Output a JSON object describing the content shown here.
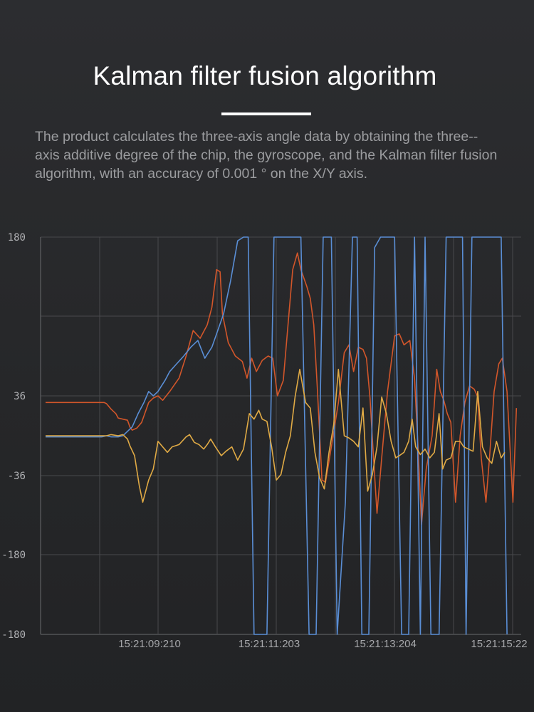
{
  "title": "Kalman filter fusion algorithm",
  "description": "The product calculates the three-axis angle data by obtaining the three--axis additive degree of the chip, the gyroscope, and the Kalman filter fusion algorithm, with an accuracy of 0.001 ° on the X/Y axis.",
  "chart_data": {
    "type": "line",
    "y_tick_labels": [
      "180",
      "36",
      "-36",
      "-180",
      "-180"
    ],
    "x_tick_labels": [
      "15:21:09:210",
      "15:21:11:203",
      "15:21:13:204",
      "15:21:15:22"
    ],
    "grid": true,
    "legend": "none",
    "series": [
      {
        "color": "#d2562a",
        "values": [
          [
            0,
            30
          ],
          [
            0.6,
            30
          ],
          [
            1,
            30
          ],
          [
            1.5,
            30
          ],
          [
            2,
            30
          ],
          [
            2.3,
            30
          ],
          [
            2.5,
            30
          ],
          [
            2.6,
            29
          ],
          [
            2.8,
            24
          ],
          [
            3.0,
            20
          ],
          [
            3.1,
            16
          ],
          [
            3.3,
            15
          ],
          [
            3.5,
            14
          ],
          [
            3.6,
            8
          ],
          [
            3.7,
            5
          ],
          [
            3.9,
            7
          ],
          [
            4.1,
            12
          ],
          [
            4.2,
            18
          ],
          [
            4.4,
            30
          ],
          [
            4.6,
            34
          ],
          [
            4.8,
            36
          ],
          [
            5.0,
            32
          ],
          [
            5.3,
            40
          ],
          [
            5.7,
            52
          ],
          [
            6.0,
            72
          ],
          [
            6.3,
            95
          ],
          [
            6.6,
            88
          ],
          [
            6.9,
            100
          ],
          [
            7.1,
            116
          ],
          [
            7.3,
            150
          ],
          [
            7.45,
            148
          ],
          [
            7.55,
            110
          ],
          [
            7.8,
            84
          ],
          [
            8.1,
            72
          ],
          [
            8.4,
            67
          ],
          [
            8.6,
            52
          ],
          [
            8.8,
            70
          ],
          [
            9.0,
            58
          ],
          [
            9.25,
            68
          ],
          [
            9.5,
            72
          ],
          [
            9.7,
            70
          ],
          [
            9.9,
            36
          ],
          [
            10.15,
            50
          ],
          [
            10.35,
            100
          ],
          [
            10.55,
            150
          ],
          [
            10.75,
            165
          ],
          [
            10.9,
            150
          ],
          [
            11.15,
            135
          ],
          [
            11.3,
            124
          ],
          [
            11.45,
            100
          ],
          [
            11.6,
            44
          ],
          [
            11.8,
            -40
          ],
          [
            11.95,
            -42
          ],
          [
            12.2,
            -10
          ],
          [
            12.5,
            30
          ],
          [
            12.75,
            75
          ],
          [
            12.95,
            82
          ],
          [
            13.15,
            58
          ],
          [
            13.35,
            80
          ],
          [
            13.55,
            78
          ],
          [
            13.7,
            70
          ],
          [
            13.85,
            34
          ],
          [
            14.0,
            -20
          ],
          [
            14.15,
            -70
          ],
          [
            14.35,
            -20
          ],
          [
            14.6,
            40
          ],
          [
            14.9,
            90
          ],
          [
            15.1,
            92
          ],
          [
            15.3,
            82
          ],
          [
            15.55,
            86
          ],
          [
            15.75,
            52
          ],
          [
            15.9,
            -10
          ],
          [
            16.05,
            -80
          ],
          [
            16.25,
            -30
          ],
          [
            16.5,
            0
          ],
          [
            16.7,
            60
          ],
          [
            16.85,
            40
          ],
          [
            17.0,
            32
          ],
          [
            17.15,
            20
          ],
          [
            17.3,
            12
          ],
          [
            17.5,
            -60
          ],
          [
            17.7,
            0
          ],
          [
            17.9,
            30
          ],
          [
            18.1,
            45
          ],
          [
            18.3,
            42
          ],
          [
            18.45,
            35
          ],
          [
            18.6,
            -20
          ],
          [
            18.8,
            -60
          ],
          [
            18.95,
            -20
          ],
          [
            19.15,
            40
          ],
          [
            19.35,
            65
          ],
          [
            19.5,
            70
          ],
          [
            19.7,
            40
          ],
          [
            19.85,
            -20
          ],
          [
            19.95,
            -60
          ],
          [
            20.1,
            25
          ]
        ]
      },
      {
        "color": "#5a8ed5",
        "values": [
          [
            0,
            -1
          ],
          [
            0.6,
            -1
          ],
          [
            1,
            -1
          ],
          [
            1.5,
            -1
          ],
          [
            2,
            -1
          ],
          [
            2.4,
            -1
          ],
          [
            2.6,
            0
          ],
          [
            2.8,
            -1
          ],
          [
            3.1,
            -1
          ],
          [
            3.3,
            0
          ],
          [
            3.5,
            4
          ],
          [
            3.7,
            8
          ],
          [
            3.95,
            20
          ],
          [
            4.2,
            30
          ],
          [
            4.4,
            40
          ],
          [
            4.6,
            36
          ],
          [
            4.8,
            40
          ],
          [
            5.1,
            50
          ],
          [
            5.3,
            58
          ],
          [
            5.6,
            65
          ],
          [
            5.9,
            72
          ],
          [
            6.2,
            80
          ],
          [
            6.5,
            86
          ],
          [
            6.8,
            70
          ],
          [
            7.1,
            80
          ],
          [
            7.3,
            92
          ],
          [
            7.6,
            110
          ],
          [
            7.9,
            140
          ],
          [
            8.2,
            176
          ],
          [
            8.45,
            200
          ],
          [
            8.65,
            268
          ],
          [
            8.9,
            -245
          ],
          [
            9.2,
            -212
          ],
          [
            9.45,
            -210
          ],
          [
            9.75,
            285
          ],
          [
            10.1,
            190
          ],
          [
            10.45,
            240
          ],
          [
            10.65,
            195
          ],
          [
            10.9,
            240
          ],
          [
            11.25,
            -205
          ],
          [
            11.55,
            -210
          ],
          [
            11.85,
            250
          ],
          [
            12.2,
            180
          ],
          [
            12.45,
            -260
          ],
          [
            12.8,
            -60
          ],
          [
            13.1,
            250
          ],
          [
            13.3,
            240
          ],
          [
            13.5,
            -210
          ],
          [
            13.8,
            -230
          ],
          [
            14.05,
            170
          ],
          [
            14.3,
            260
          ],
          [
            14.6,
            260
          ],
          [
            14.9,
            190
          ],
          [
            15.2,
            -220
          ],
          [
            15.5,
            -250
          ],
          [
            15.75,
            260
          ],
          [
            16.0,
            -250
          ],
          [
            16.2,
            260
          ],
          [
            16.45,
            -245
          ],
          [
            16.8,
            -205
          ],
          [
            17.1,
            200
          ],
          [
            17.4,
            238
          ],
          [
            17.8,
            220
          ],
          [
            17.95,
            -240
          ],
          [
            18.2,
            232
          ],
          [
            18.5,
            232
          ],
          [
            18.7,
            250
          ],
          [
            18.9,
            260
          ],
          [
            19.1,
            243
          ],
          [
            19.3,
            226
          ],
          [
            19.45,
            215
          ],
          [
            19.7,
            -240
          ]
        ]
      },
      {
        "color": "#e0aa45",
        "values": [
          [
            0,
            0
          ],
          [
            0.6,
            0
          ],
          [
            1,
            0
          ],
          [
            1.5,
            0
          ],
          [
            2,
            0
          ],
          [
            2.4,
            0
          ],
          [
            2.6,
            0
          ],
          [
            2.8,
            1
          ],
          [
            3.1,
            0
          ],
          [
            3.3,
            1
          ],
          [
            3.5,
            -3
          ],
          [
            3.6,
            -9
          ],
          [
            3.8,
            -18
          ],
          [
            4.0,
            -45
          ],
          [
            4.15,
            -60
          ],
          [
            4.4,
            -40
          ],
          [
            4.6,
            -30
          ],
          [
            4.8,
            -5
          ],
          [
            5.0,
            -10
          ],
          [
            5.2,
            -15
          ],
          [
            5.4,
            -10
          ],
          [
            5.7,
            -8
          ],
          [
            6.0,
            -1
          ],
          [
            6.15,
            1
          ],
          [
            6.35,
            -6
          ],
          [
            6.55,
            -8
          ],
          [
            6.75,
            -12
          ],
          [
            6.9,
            -8
          ],
          [
            7.05,
            -3
          ],
          [
            7.25,
            -10
          ],
          [
            7.5,
            -18
          ],
          [
            7.7,
            -14
          ],
          [
            7.95,
            -10
          ],
          [
            8.2,
            -22
          ],
          [
            8.45,
            -12
          ],
          [
            8.7,
            20
          ],
          [
            8.9,
            15
          ],
          [
            9.1,
            23
          ],
          [
            9.25,
            15
          ],
          [
            9.45,
            13
          ],
          [
            9.65,
            -10
          ],
          [
            9.85,
            -40
          ],
          [
            10.05,
            -35
          ],
          [
            10.25,
            -15
          ],
          [
            10.45,
            0
          ],
          [
            10.65,
            35
          ],
          [
            10.85,
            60
          ],
          [
            11.1,
            30
          ],
          [
            11.3,
            25
          ],
          [
            11.5,
            -15
          ],
          [
            11.7,
            -38
          ],
          [
            11.9,
            -48
          ],
          [
            12.1,
            -15
          ],
          [
            12.3,
            10
          ],
          [
            12.5,
            60
          ],
          [
            12.75,
            0
          ],
          [
            12.95,
            -2
          ],
          [
            13.15,
            -5
          ],
          [
            13.35,
            -10
          ],
          [
            13.55,
            25
          ],
          [
            13.75,
            -50
          ],
          [
            13.95,
            -35
          ],
          [
            14.15,
            -10
          ],
          [
            14.35,
            35
          ],
          [
            14.55,
            20
          ],
          [
            14.75,
            -5
          ],
          [
            14.95,
            -20
          ],
          [
            15.1,
            -18
          ],
          [
            15.3,
            -15
          ],
          [
            15.5,
            -5
          ],
          [
            15.65,
            15
          ],
          [
            15.8,
            -10
          ],
          [
            16.0,
            -17
          ],
          [
            16.2,
            -12
          ],
          [
            16.4,
            -20
          ],
          [
            16.6,
            -15
          ],
          [
            16.8,
            20
          ],
          [
            16.95,
            -30
          ],
          [
            17.1,
            -22
          ],
          [
            17.3,
            -20
          ],
          [
            17.5,
            -5
          ],
          [
            17.7,
            -5
          ],
          [
            17.85,
            -10
          ],
          [
            18.05,
            -12
          ],
          [
            18.25,
            -14
          ],
          [
            18.45,
            40
          ],
          [
            18.65,
            -10
          ],
          [
            18.85,
            -20
          ],
          [
            19.05,
            -25
          ],
          [
            19.25,
            -5
          ],
          [
            19.45,
            -20
          ],
          [
            19.6,
            -15
          ]
        ]
      }
    ]
  }
}
